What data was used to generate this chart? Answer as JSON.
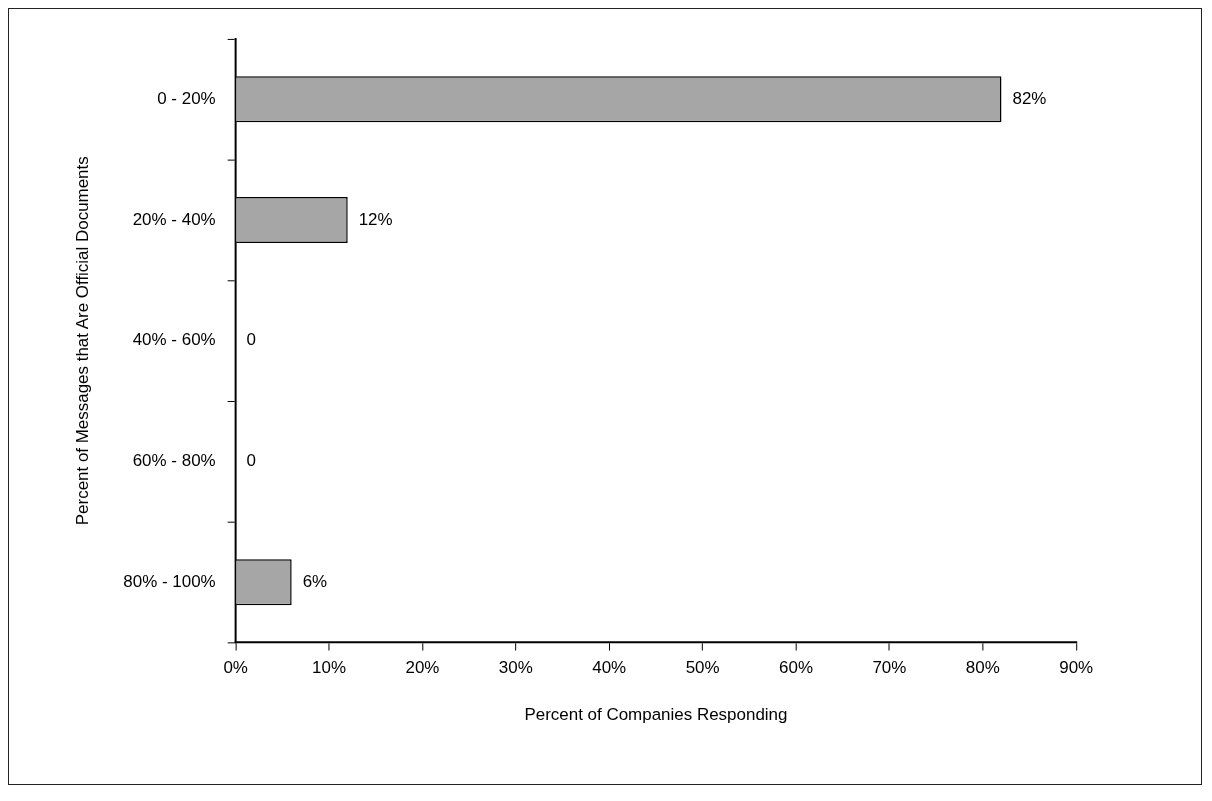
{
  "chart_data": {
    "type": "bar",
    "orientation": "horizontal",
    "xlabel": "Percent of Companies Responding",
    "ylabel": "Percent of Messages that Are Official Documents",
    "categories": [
      "0 - 20%",
      "20% - 40%",
      "40% - 60%",
      "60% - 80%",
      "80% - 100%"
    ],
    "values": [
      82,
      12,
      0,
      0,
      6
    ],
    "value_labels": [
      "82%",
      "12%",
      "0",
      "0",
      "6%"
    ],
    "color": "#a6a6a6",
    "xlim": [
      0,
      90
    ],
    "xticks": [
      {
        "value": 0,
        "label": "0%"
      },
      {
        "value": 10,
        "label": "10%"
      },
      {
        "value": 20,
        "label": "20%"
      },
      {
        "value": 30,
        "label": "30%"
      },
      {
        "value": 40,
        "label": "40%"
      },
      {
        "value": 50,
        "label": "50%"
      },
      {
        "value": 60,
        "label": "60%"
      },
      {
        "value": 70,
        "label": "70%"
      },
      {
        "value": 80,
        "label": "80%"
      },
      {
        "value": 90,
        "label": "90%"
      }
    ],
    "grid": false,
    "legend": false
  }
}
